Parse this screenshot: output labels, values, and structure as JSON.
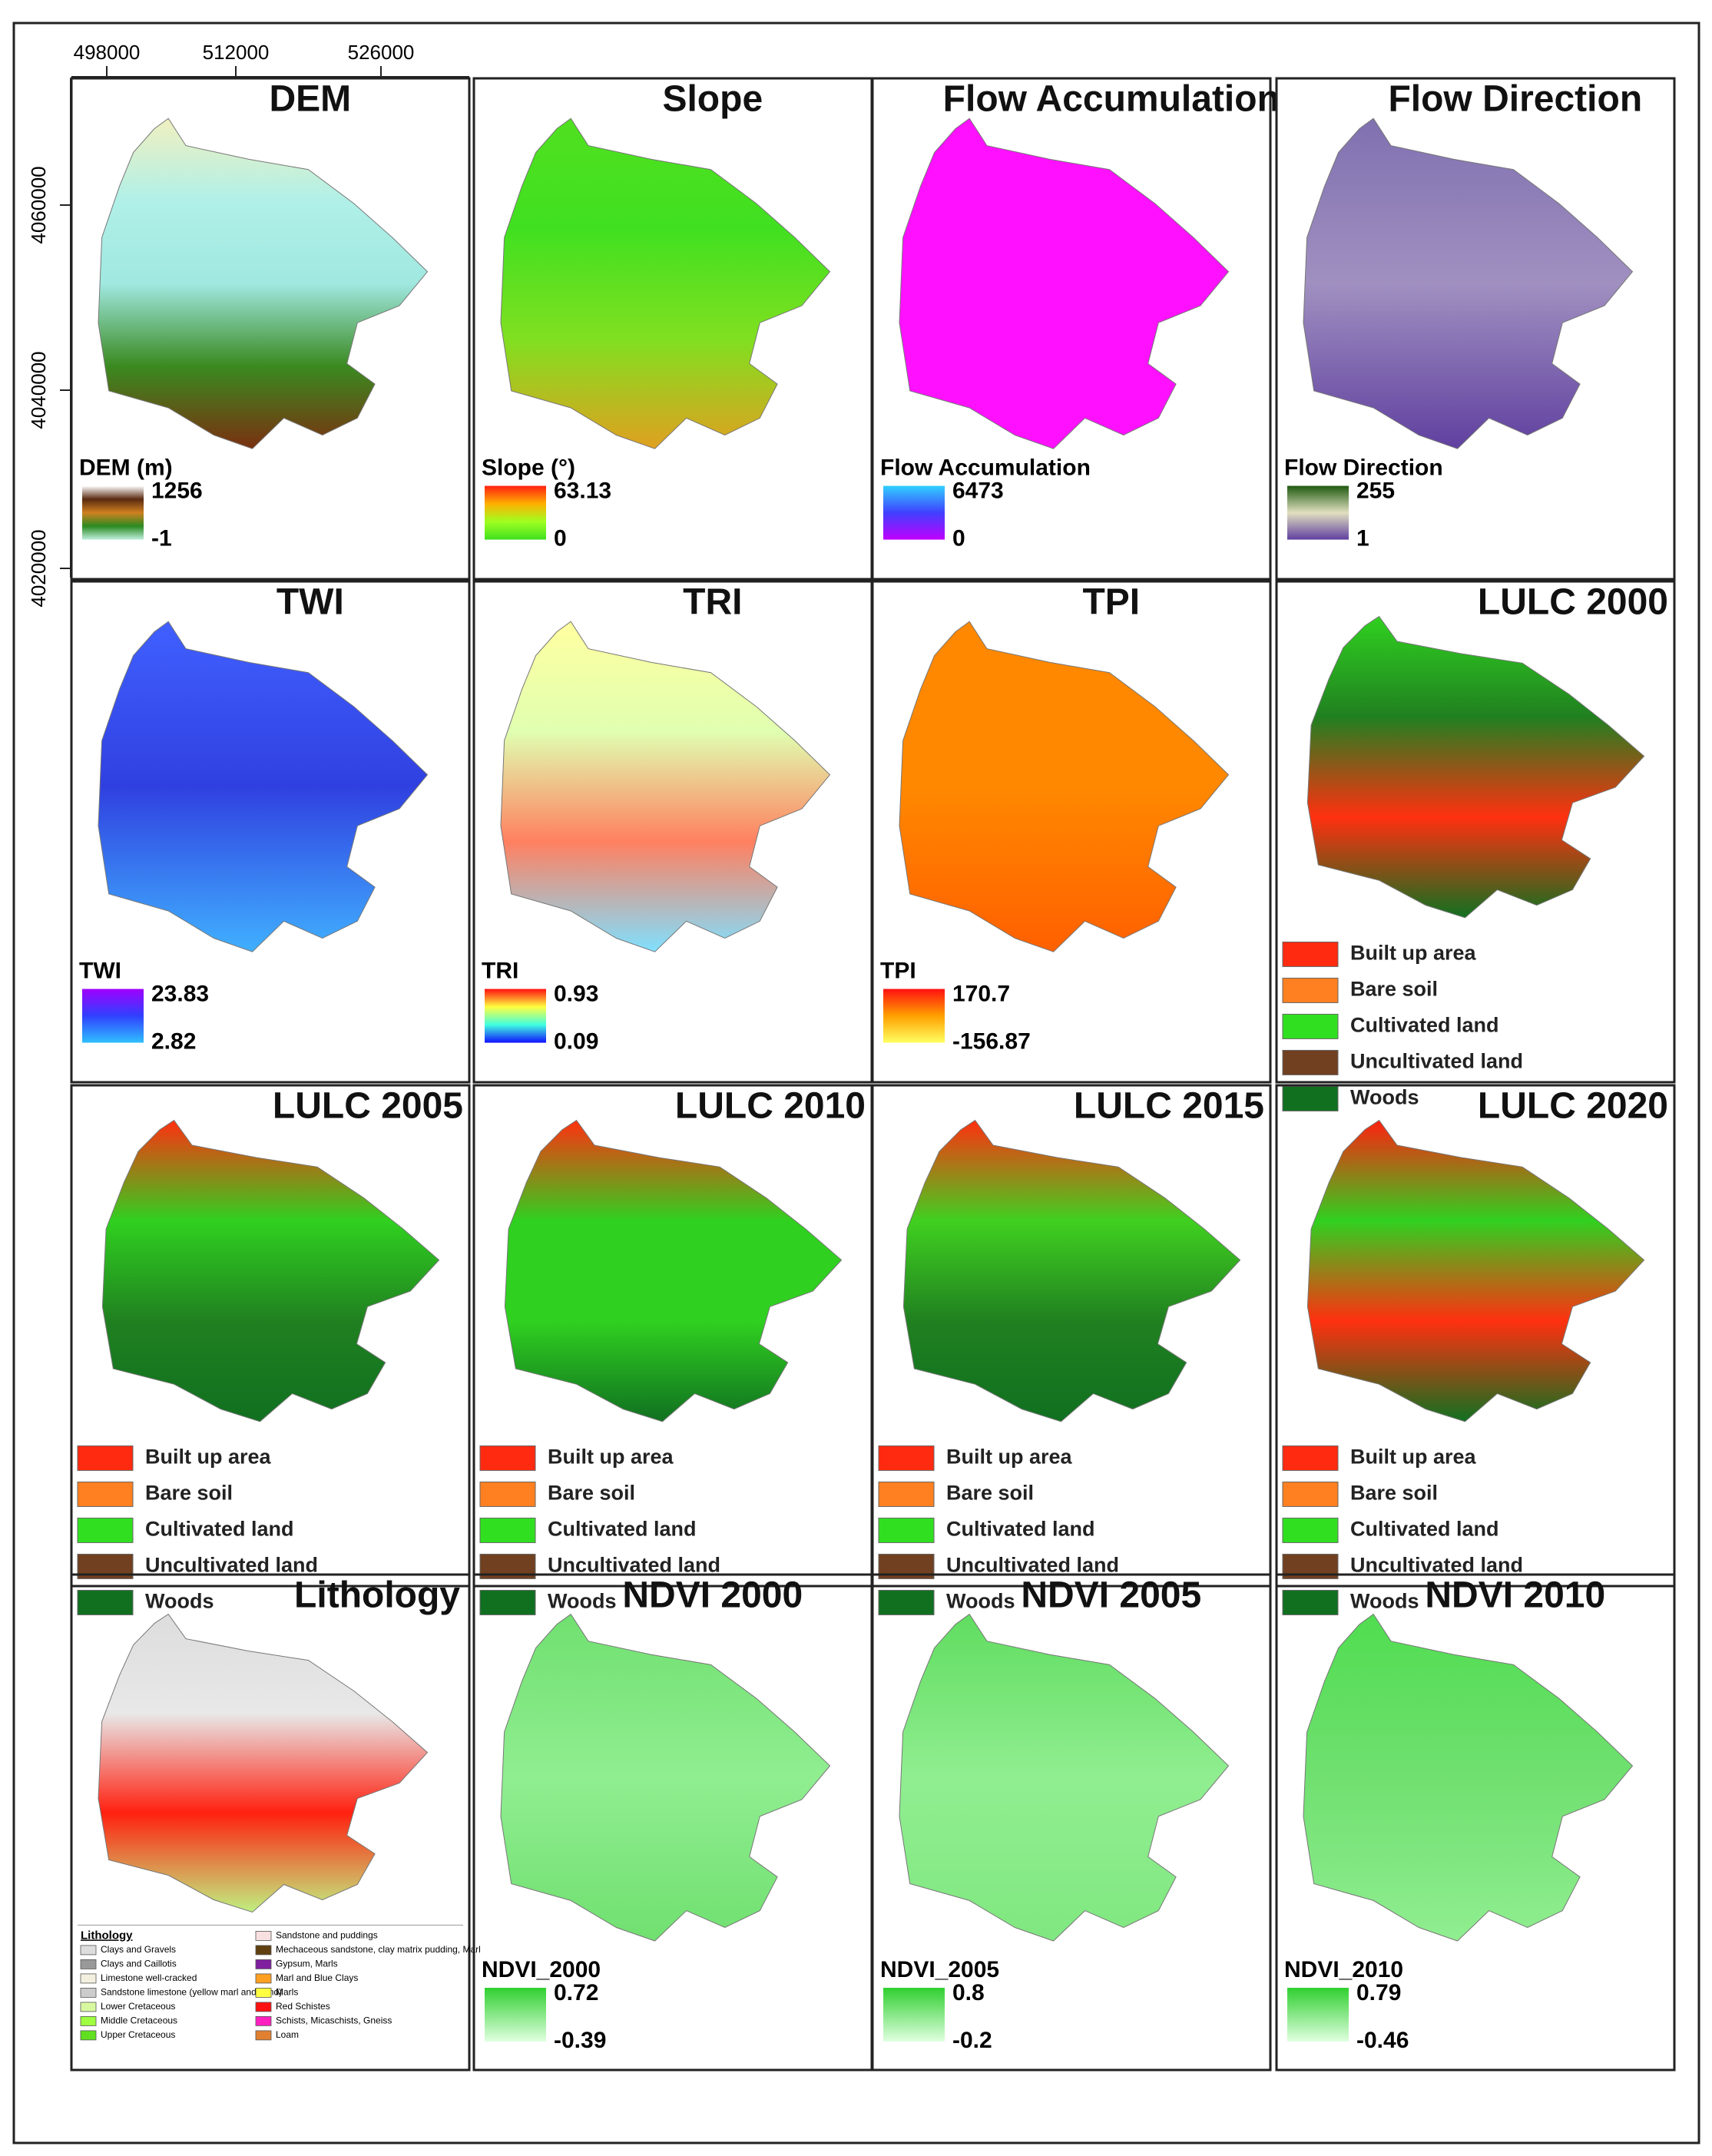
{
  "axes": {
    "x_labels": [
      "498000",
      "512000",
      "526000"
    ],
    "y_labels": [
      "4060000",
      "4040000",
      "4020000"
    ]
  },
  "panels": [
    {
      "title": "DEM",
      "legend_title": "DEM (m)",
      "max": "1256",
      "min": "-1",
      "ramp": [
        "#ffffff",
        "#5a2a10",
        "#d08020",
        "#2a8a20",
        "#c0f0e0"
      ]
    },
    {
      "title": "Slope",
      "legend_title": "Slope (°)",
      "max": "63.13",
      "min": "0",
      "ramp": [
        "#ff2010",
        "#ffb000",
        "#a0ff20",
        "#40e020"
      ]
    },
    {
      "title": "Flow Accumulation",
      "legend_title": "Flow Accumulation",
      "max": "6473",
      "min": "0",
      "ramp": [
        "#30d0ff",
        "#4040ff",
        "#c000ff"
      ]
    },
    {
      "title": "Flow Direction",
      "legend_title": "Flow Direction",
      "max": "255",
      "min": "1",
      "ramp": [
        "#205a10",
        "#e0e0c0",
        "#6040a0"
      ]
    },
    {
      "title": "TWI",
      "legend_title": "TWI",
      "max": "23.83",
      "min": "2.82",
      "ramp": [
        "#a000ff",
        "#3040ff",
        "#30c0ff"
      ]
    },
    {
      "title": "TRI",
      "legend_title": "TRI",
      "max": "0.93",
      "min": "0.09",
      "ramp": [
        "#ff1010",
        "#ffff40",
        "#40ffe0",
        "#1010ff"
      ]
    },
    {
      "title": "TPI",
      "legend_title": "TPI",
      "max": "170.7",
      "min": "-156.87",
      "ramp": [
        "#ff1010",
        "#ffa000",
        "#ffff60"
      ]
    },
    {
      "title": "LULC 2000",
      "classes": [
        {
          "label": "Built up area",
          "color": "#ff2a10"
        },
        {
          "label": "Bare soil",
          "color": "#ff8020"
        },
        {
          "label": "Cultivated land",
          "color": "#30e020"
        },
        {
          "label": "Uncultivated land",
          "color": "#704020"
        },
        {
          "label": "Woods",
          "color": "#107020"
        }
      ]
    },
    {
      "title": "LULC 2005",
      "classes": [
        {
          "label": "Built up area",
          "color": "#ff2a10"
        },
        {
          "label": "Bare soil",
          "color": "#ff8020"
        },
        {
          "label": "Cultivated land",
          "color": "#30e020"
        },
        {
          "label": "Uncultivated land",
          "color": "#704020"
        },
        {
          "label": "Woods",
          "color": "#107020"
        }
      ]
    },
    {
      "title": "LULC 2010",
      "classes": [
        {
          "label": "Built up area",
          "color": "#ff2a10"
        },
        {
          "label": "Bare soil",
          "color": "#ff8020"
        },
        {
          "label": "Cultivated land",
          "color": "#30e020"
        },
        {
          "label": "Uncultivated land",
          "color": "#704020"
        },
        {
          "label": "Woods",
          "color": "#107020"
        }
      ]
    },
    {
      "title": "LULC 2015",
      "classes": [
        {
          "label": "Built up area",
          "color": "#ff2a10"
        },
        {
          "label": "Bare soil",
          "color": "#ff8020"
        },
        {
          "label": "Cultivated land",
          "color": "#30e020"
        },
        {
          "label": "Uncultivated land",
          "color": "#704020"
        },
        {
          "label": "Woods",
          "color": "#107020"
        }
      ]
    },
    {
      "title": "LULC 2020",
      "classes": [
        {
          "label": "Built up area",
          "color": "#ff2a10"
        },
        {
          "label": "Bare soil",
          "color": "#ff8020"
        },
        {
          "label": "Cultivated land",
          "color": "#30e020"
        },
        {
          "label": "Uncultivated land",
          "color": "#704020"
        },
        {
          "label": "Woods",
          "color": "#107020"
        }
      ]
    },
    {
      "title": "Lithology",
      "legend_title": "Lithology",
      "lith_classes": [
        {
          "label": "Clays and Gravels",
          "color": "#dddddd"
        },
        {
          "label": "Clays and Caillotis",
          "color": "#999999"
        },
        {
          "label": "Limestone well-cracked",
          "color": "#f4f0e0"
        },
        {
          "label": "Sandstone limestone (yellow marl and sand)",
          "color": "#cccccc"
        },
        {
          "label": "Lower Cretaceous",
          "color": "#d8f8a0"
        },
        {
          "label": "Middle Cretaceous",
          "color": "#a0ff40"
        },
        {
          "label": "Upper Cretaceous",
          "color": "#60e020"
        },
        {
          "label": "Sandstone and puddings",
          "color": "#f8e0e0"
        },
        {
          "label": "Mechaceous sandstone, clay matrix pudding, Marl",
          "color": "#604010"
        },
        {
          "label": "Gypsum, Marls",
          "color": "#8020a0"
        },
        {
          "label": "Marl and Blue Clays",
          "color": "#ffa020"
        },
        {
          "label": "Marls",
          "color": "#ffff40"
        },
        {
          "label": "Red Schistes",
          "color": "#ff1010"
        },
        {
          "label": "Schists, Micaschists, Gneiss",
          "color": "#ff20c0"
        },
        {
          "label": "Loam",
          "color": "#e08030"
        }
      ]
    },
    {
      "title": "NDVI 2000",
      "legend_title": "NDVI_2000",
      "max": "0.72",
      "min": "-0.39",
      "ramp": [
        "#30d030",
        "#e0ffe0"
      ]
    },
    {
      "title": "NDVI 2005",
      "legend_title": "NDVI_2005",
      "max": "0.8",
      "min": "-0.2",
      "ramp": [
        "#30d030",
        "#e0ffe0"
      ]
    },
    {
      "title": "NDVI 2010",
      "legend_title": "NDVI_2010",
      "max": "0.79",
      "min": "-0.46",
      "ramp": [
        "#30d030",
        "#e0ffe0"
      ]
    }
  ]
}
